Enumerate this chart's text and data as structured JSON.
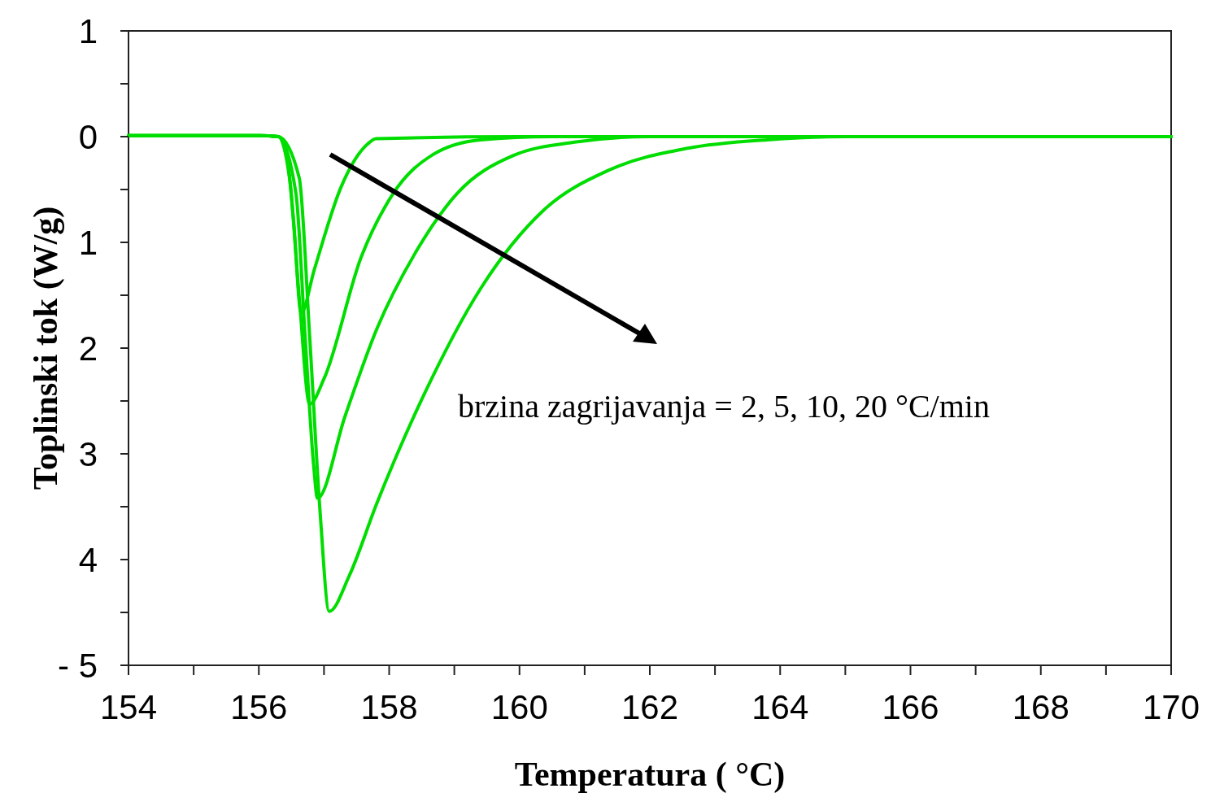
{
  "chart_data": {
    "type": "line",
    "xlabel": "Temperatura  ( °C)",
    "ylabel": "Toplinski tok   (W/g)",
    "annotations": [
      "brzina zagrijavanja = 2, 5, 10, 20 °C/min"
    ],
    "xlim": [
      154,
      170
    ],
    "ylim": [
      -5,
      1
    ],
    "xticks": [
      154,
      {
        "value": 155,
        "label": null
      },
      156,
      {
        "value": 157,
        "label": null
      },
      158,
      {
        "value": 159,
        "label": null
      },
      160,
      {
        "value": 161,
        "label": null
      },
      162,
      {
        "value": 163,
        "label": null
      },
      164,
      {
        "value": 165,
        "label": null
      },
      166,
      {
        "value": 167,
        "label": null
      },
      168,
      {
        "value": 169,
        "label": null
      },
      170
    ],
    "yticks": [
      {
        "value": 1,
        "label": "1"
      },
      {
        "value": 0.5,
        "label": null
      },
      {
        "value": 0,
        "label": "0"
      },
      {
        "value": -0.5,
        "label": null
      },
      {
        "value": -1,
        "label": "1"
      },
      {
        "value": -1.5,
        "label": null
      },
      {
        "value": -2,
        "label": "2"
      },
      {
        "value": -2.5,
        "label": null
      },
      {
        "value": -3,
        "label": "3"
      },
      {
        "value": -3.5,
        "label": null
      },
      {
        "value": -4,
        "label": "4"
      },
      {
        "value": -4.5,
        "label": null
      },
      {
        "value": -5,
        "label": "- 5"
      }
    ],
    "grid": false,
    "marker": "none",
    "line_style": "solid",
    "series": [
      {
        "color": "#00dd00",
        "x": [
          154,
          155,
          156,
          156.3,
          156.41,
          156.53,
          156.65,
          156.85,
          157.26,
          157.67,
          157.8,
          160,
          165,
          170
        ],
        "values": [
          0.01,
          0.01,
          0.01,
          0,
          -0.09,
          -0.77,
          -1.67,
          -1.26,
          -0.48,
          -0.07,
          -0.02,
          0,
          0,
          0
        ]
      },
      {
        "color": "#00dd00",
        "x": [
          154,
          156,
          156.3,
          156.47,
          156.62,
          156.78,
          157.0,
          157.57,
          158.06,
          158.67,
          159.4,
          160.5,
          165,
          170
        ],
        "values": [
          0.01,
          0.01,
          0,
          -0.39,
          -1.52,
          -2.53,
          -2.29,
          -1.14,
          -0.54,
          -0.17,
          -0.03,
          0,
          0,
          0
        ]
      },
      {
        "color": "#00dd00",
        "x": [
          154,
          156,
          156.3,
          156.57,
          156.71,
          156.84,
          156.9,
          157.32,
          157.81,
          158.43,
          159.04,
          159.9,
          160.87,
          162,
          170
        ],
        "values": [
          0.01,
          0.01,
          0,
          -0.54,
          -1.89,
          -3.1,
          -3.42,
          -2.65,
          -1.82,
          -1.07,
          -0.54,
          -0.18,
          -0.05,
          0,
          0
        ]
      },
      {
        "color": "#00dd00",
        "x": [
          154,
          156,
          156.3,
          156.62,
          156.78,
          156.94,
          157.08,
          157.39,
          157.81,
          158.55,
          159.4,
          160.38,
          161.36,
          162.58,
          163.8,
          165,
          170
        ],
        "values": [
          0.01,
          0.01,
          0,
          -0.39,
          -1.89,
          -3.55,
          -4.49,
          -4.15,
          -3.47,
          -2.42,
          -1.44,
          -0.69,
          -0.32,
          -0.11,
          -0.03,
          0,
          0
        ]
      }
    ]
  }
}
